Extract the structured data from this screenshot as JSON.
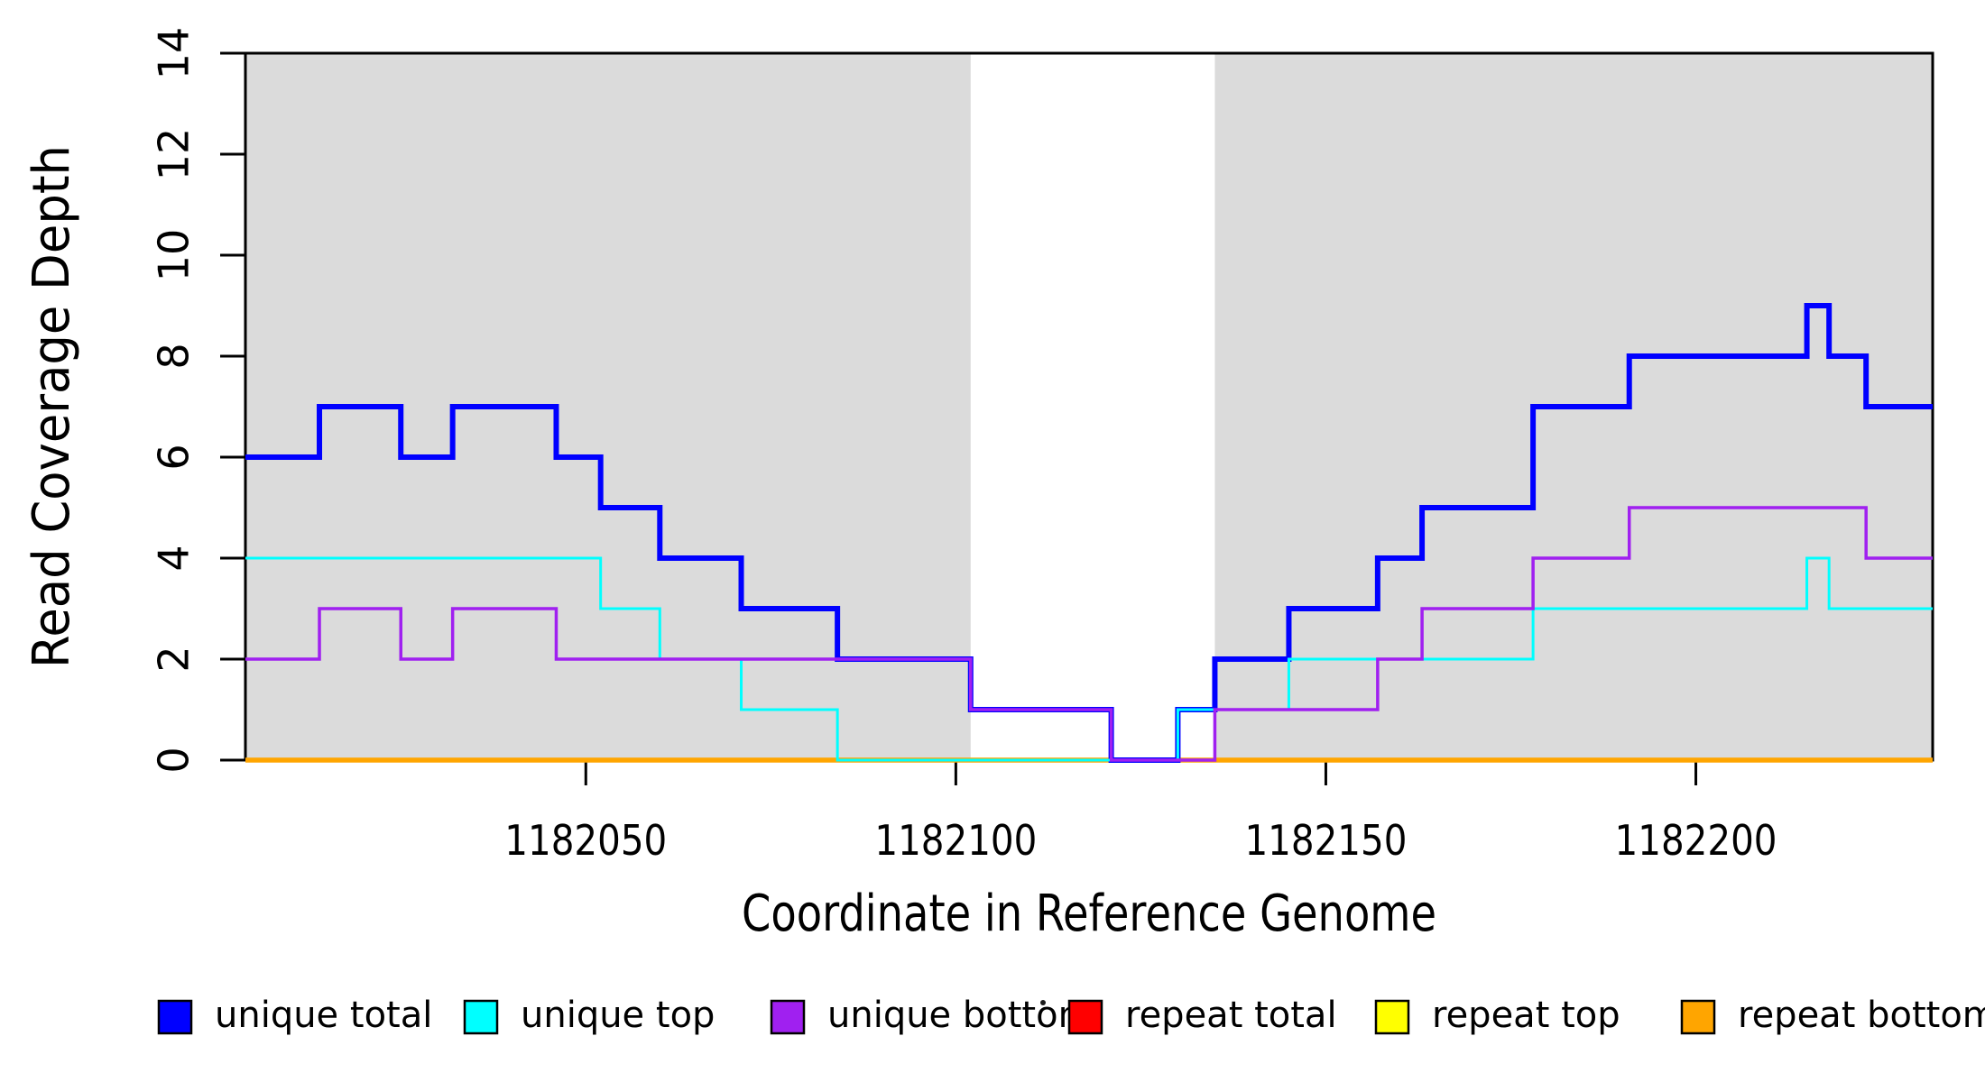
{
  "chart_data": {
    "type": "line",
    "subtype": "step-coverage",
    "title": "",
    "xlabel": "Coordinate in Reference Genome",
    "ylabel": "Read Coverage Depth",
    "xlim": [
      1182004,
      1182232
    ],
    "ylim": [
      0,
      14
    ],
    "grid": false,
    "x_ticks": [
      1182050,
      1182100,
      1182150,
      1182200
    ],
    "x_tick_labels": [
      "1182050",
      "1182100",
      "1182150",
      "1182200"
    ],
    "y_ticks": [
      0,
      2,
      4,
      6,
      8,
      10,
      12,
      14
    ],
    "y_tick_labels": [
      "0",
      "2",
      "4",
      "6",
      "8",
      "10",
      "12",
      "14"
    ],
    "shaded_regions": [
      {
        "x0": 1182004,
        "x1": 1182102,
        "color": "#DBDBDB"
      },
      {
        "x0": 1182135,
        "x1": 1182232,
        "color": "#DBDBDB"
      }
    ],
    "frame_color": "#000000",
    "legend_position": "bottom",
    "series": [
      {
        "name": "unique total",
        "color": "#0000FF",
        "stroke_width": 6,
        "steps": [
          [
            1182004,
            6
          ],
          [
            1182014,
            7
          ],
          [
            1182025,
            6
          ],
          [
            1182032,
            7
          ],
          [
            1182046,
            6
          ],
          [
            1182052,
            5
          ],
          [
            1182060,
            4
          ],
          [
            1182071,
            3
          ],
          [
            1182084,
            2
          ],
          [
            1182102,
            1
          ],
          [
            1182121,
            0
          ],
          [
            1182130,
            1
          ],
          [
            1182135,
            2
          ],
          [
            1182145,
            3
          ],
          [
            1182157,
            4
          ],
          [
            1182163,
            5
          ],
          [
            1182178,
            7
          ],
          [
            1182191,
            8
          ],
          [
            1182215,
            9
          ],
          [
            1182218,
            8
          ],
          [
            1182223,
            7
          ]
        ]
      },
      {
        "name": "unique top",
        "color": "#00FFFF",
        "stroke_width": 3,
        "steps": [
          [
            1182004,
            4
          ],
          [
            1182052,
            3
          ],
          [
            1182060,
            2
          ],
          [
            1182071,
            1
          ],
          [
            1182084,
            0
          ],
          [
            1182130,
            1
          ],
          [
            1182145,
            2
          ],
          [
            1182178,
            3
          ],
          [
            1182215,
            4
          ],
          [
            1182218,
            3
          ]
        ]
      },
      {
        "name": "unique bottom",
        "color": "#A020F0",
        "stroke_width": 3.5,
        "steps": [
          [
            1182004,
            2
          ],
          [
            1182014,
            3
          ],
          [
            1182025,
            2
          ],
          [
            1182032,
            3
          ],
          [
            1182046,
            2
          ],
          [
            1182102,
            1
          ],
          [
            1182121,
            0
          ],
          [
            1182135,
            1
          ],
          [
            1182157,
            2
          ],
          [
            1182163,
            3
          ],
          [
            1182178,
            4
          ],
          [
            1182191,
            5
          ],
          [
            1182223,
            4
          ]
        ]
      },
      {
        "name": "repeat total",
        "color": "#FF0000",
        "stroke_width": 3,
        "steps": [
          [
            1182004,
            0
          ]
        ]
      },
      {
        "name": "repeat top",
        "color": "#FFFF00",
        "stroke_width": 3,
        "steps": [
          [
            1182004,
            0
          ]
        ]
      },
      {
        "name": "repeat bottom",
        "color": "#FFA500",
        "stroke_width": 5.5,
        "steps": [
          [
            1182004,
            0
          ]
        ]
      }
    ],
    "draw_order": [
      3,
      4,
      5,
      0,
      1,
      2
    ],
    "legend": [
      {
        "label": "unique total",
        "color": "#0000FF"
      },
      {
        "label": "unique top",
        "color": "#00FFFF"
      },
      {
        "label": "unique bottom",
        "color": "#A020F0"
      },
      {
        "label": "repeat total",
        "color": "#FF0000"
      },
      {
        "label": "repeat top",
        "color": "#FFFF00"
      },
      {
        "label": "repeat bottom",
        "color": "#FFA500"
      }
    ]
  }
}
